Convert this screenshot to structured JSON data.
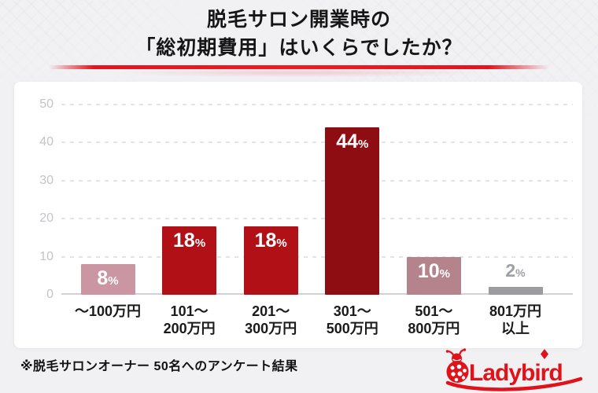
{
  "title": {
    "line1": "脱毛サロン開業時の",
    "line2": "「総初期費用」はいくらでしたか？"
  },
  "footer": {
    "note": "※脱毛サロンオーナー 50名へのアンケート結果",
    "brand": "Ladybird"
  },
  "colors": {
    "accent_red": "#e6141e",
    "logo_red": "#e0121a",
    "bar_dark_red": "#8e0d12",
    "bar_red": "#b11116",
    "bar_pink": "#c996a1",
    "bar_rose": "#b5838c",
    "bar_gray": "#9c9ca0",
    "axis_label_gray": "#c4c4c9",
    "above_label_gray": "#9fa0a4"
  },
  "chart_data": {
    "type": "bar",
    "title": "脱毛サロン開業時の「総初期費用」はいくらでしたか？",
    "source_note": "※脱毛サロンオーナー 50名へのアンケート結果",
    "categories": [
      "〜100万円",
      "101〜\n200万円",
      "201〜\n300万円",
      "301〜\n500万円",
      "501〜\n800万円",
      "801万円\n以上"
    ],
    "values": [
      8,
      18,
      18,
      44,
      10,
      2
    ],
    "value_labels": [
      "8%",
      "18%",
      "18%",
      "44%",
      "10%",
      "2%"
    ],
    "unit": "%",
    "ylim": [
      0,
      50
    ],
    "yticks": [
      0,
      10,
      20,
      30,
      40,
      50
    ],
    "grid": "dashed-horizontal",
    "legend": "none",
    "bar_colors": [
      "#c996a1",
      "#b11116",
      "#b11116",
      "#8e0d12",
      "#b5838c",
      "#9c9ca0"
    ],
    "value_label_positions": [
      "inside",
      "inside",
      "inside",
      "inside",
      "inside",
      "above"
    ]
  }
}
